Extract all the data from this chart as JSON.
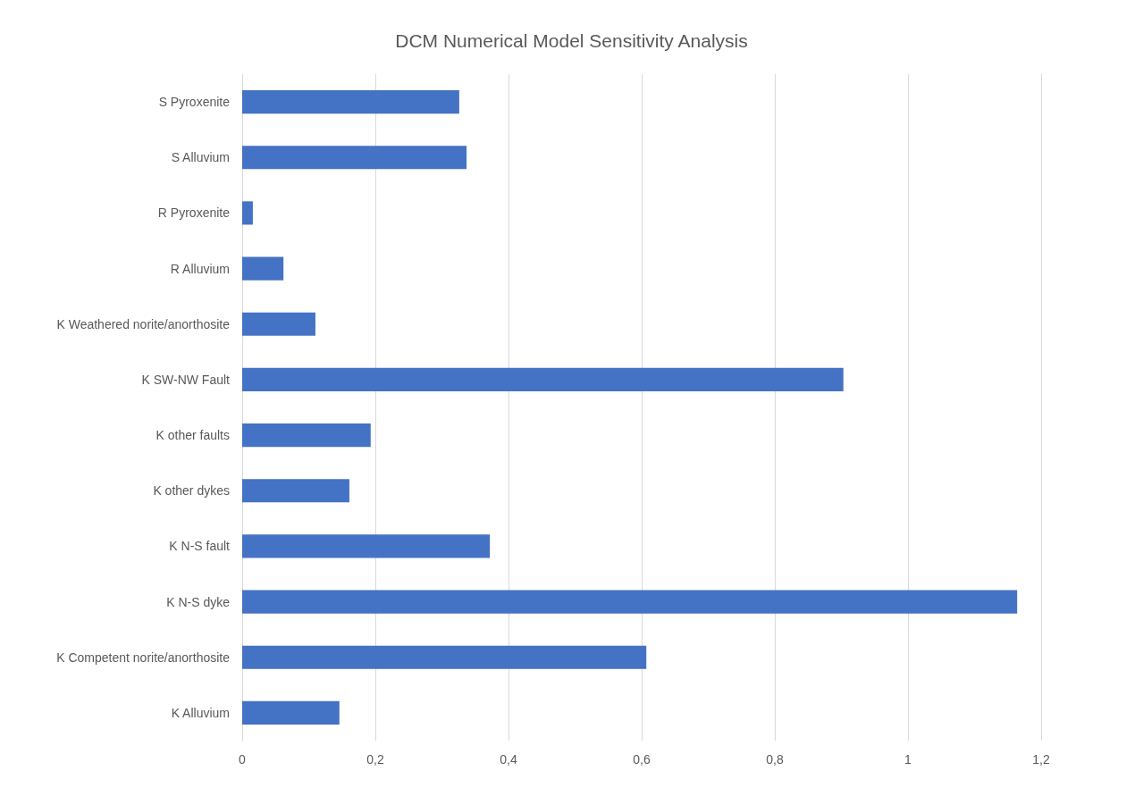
{
  "chart_data": {
    "type": "bar",
    "orientation": "horizontal",
    "title": "DCM Numerical Model Sensitivity Analysis",
    "categories": [
      "S Pyroxenite",
      "S Alluvium",
      "R Pyroxenite",
      "R Alluvium",
      "K Weathered norite/anorthosite",
      "K SW-NW Fault",
      "K other faults",
      "K other dykes",
      "K N-S fault",
      "K N-S dyke",
      "K Competent norite/anorthosite",
      "K Alluvium"
    ],
    "values": [
      0.326,
      0.337,
      0.016,
      0.062,
      0.11,
      0.903,
      0.193,
      0.161,
      0.372,
      1.164,
      0.607,
      0.146
    ],
    "color": "#4472c4",
    "xlim": [
      0,
      1.2
    ],
    "xticks": [
      0,
      {
        "value": 0.2,
        "label": "0,2"
      },
      {
        "value": 0.4,
        "label": "0,4"
      },
      {
        "value": 0.6,
        "label": "0,6"
      },
      {
        "value": 0.8,
        "label": "0,8"
      },
      1,
      {
        "value": 1.2,
        "label": "1,2"
      }
    ],
    "grid": "x"
  }
}
